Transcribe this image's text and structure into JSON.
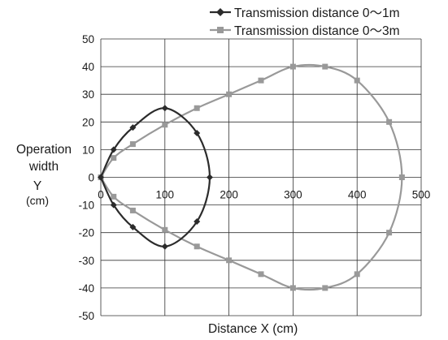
{
  "chart_data": {
    "type": "line",
    "title": "",
    "xlabel": "Distance  X  (cm)",
    "ylabel": "Operation width Y",
    "ylabel_lines": [
      "Operation",
      "width",
      "Y"
    ],
    "ylabel_unit": "(cm)",
    "xlim": [
      0,
      500
    ],
    "ylim": [
      -50,
      50
    ],
    "x_ticks": [
      0,
      100,
      200,
      300,
      400,
      500
    ],
    "y_ticks": [
      50,
      40,
      30,
      20,
      10,
      0,
      -10,
      -20,
      -30,
      -40,
      -50
    ],
    "grid": true,
    "legend_position": "top-right",
    "series": [
      {
        "name": "Transmission distance 0〜1m",
        "color": "#2b2b2b",
        "marker": "diamond",
        "points": [
          [
            0,
            0
          ],
          [
            20,
            10
          ],
          [
            50,
            18
          ],
          [
            100,
            25
          ],
          [
            150,
            16
          ],
          [
            170,
            0
          ],
          [
            150,
            -16
          ],
          [
            100,
            -25
          ],
          [
            50,
            -18
          ],
          [
            20,
            -10
          ],
          [
            0,
            0
          ]
        ]
      },
      {
        "name": "Transmission distance 0〜3m",
        "color": "#999999",
        "marker": "square",
        "points": [
          [
            0,
            0
          ],
          [
            20,
            7
          ],
          [
            50,
            12
          ],
          [
            100,
            19
          ],
          [
            150,
            25
          ],
          [
            200,
            30
          ],
          [
            250,
            35
          ],
          [
            300,
            40
          ],
          [
            350,
            40
          ],
          [
            400,
            35
          ],
          [
            450,
            20
          ],
          [
            470,
            0
          ],
          [
            450,
            -20
          ],
          [
            400,
            -35
          ],
          [
            350,
            -40
          ],
          [
            300,
            -40
          ],
          [
            250,
            -35
          ],
          [
            200,
            -30
          ],
          [
            150,
            -25
          ],
          [
            100,
            -19
          ],
          [
            50,
            -12
          ],
          [
            20,
            -7
          ],
          [
            0,
            0
          ]
        ]
      }
    ]
  }
}
